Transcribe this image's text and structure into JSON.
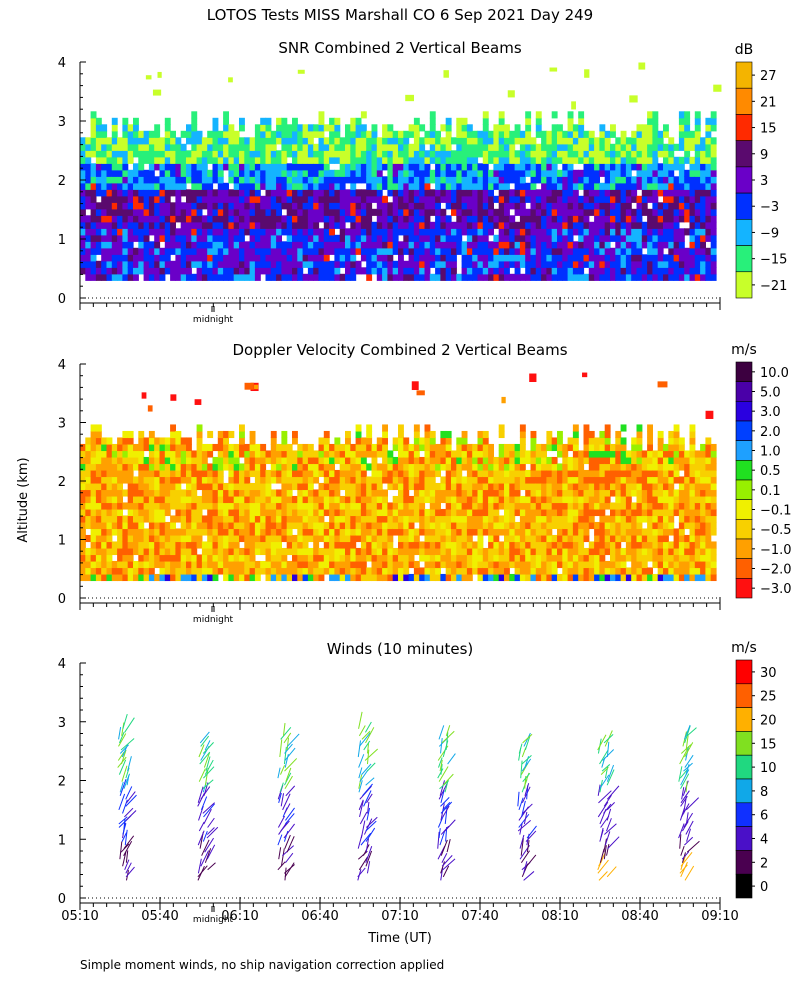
{
  "page": {
    "title": "LOTOS Tests MISS Marshall CO   6 Sep 2021 Day 249",
    "footer": "Simple moment winds, no ship navigation correction applied",
    "ylabel": "Altitude (km)",
    "xlabel": "Time (UT)",
    "midnight_label": "midnight"
  },
  "chart_data": [
    {
      "type": "heatmap",
      "title": "SNR Combined 2 Vertical Beams",
      "unit": "dB",
      "yticks": [
        "0",
        "1",
        "2",
        "3",
        "4"
      ],
      "ylim": [
        0,
        4
      ],
      "colorbar_labels": [
        "27",
        "21",
        "15",
        "9",
        "3",
        "−3",
        "−9",
        "−15",
        "−21"
      ],
      "colorbar_colors": [
        "#f4b400",
        "#ff8a00",
        "#ff2a00",
        "#5a0a6e",
        "#6a00c8",
        "#0030ff",
        "#14b4ff",
        "#28f07a",
        "#c8ff2a"
      ],
      "data_altitude_range_km": [
        0.3,
        3.0
      ]
    },
    {
      "type": "heatmap",
      "title": "Doppler Velocity Combined 2 Vertical Beams",
      "unit": "m/s",
      "yticks": [
        "0",
        "1",
        "2",
        "3",
        "4"
      ],
      "ylim": [
        0,
        4
      ],
      "colorbar_labels": [
        "10.0",
        "5.0",
        "3.0",
        "2.0",
        "1.0",
        "0.5",
        "0.1",
        "−0.1",
        "−0.5",
        "−1.0",
        "−2.0",
        "−3.0"
      ],
      "colorbar_colors": [
        "#3c0040",
        "#4a00a8",
        "#2a00e0",
        "#0040ff",
        "#1ea0ff",
        "#20e020",
        "#98f000",
        "#f0f000",
        "#f8d000",
        "#ffa000",
        "#ff6000",
        "#ff1010"
      ],
      "data_altitude_range_km": [
        0.3,
        2.8
      ]
    },
    {
      "type": "scatter",
      "title": "Winds (10 minutes)",
      "unit": "m/s",
      "yticks": [
        "0",
        "1",
        "2",
        "3",
        "4"
      ],
      "ylim": [
        0,
        4
      ],
      "xticks": [
        "05:10",
        "05:40",
        "06:10",
        "06:40",
        "07:10",
        "07:40",
        "08:10",
        "08:40",
        "09:10"
      ],
      "colorbar_labels": [
        "30",
        "25",
        "20",
        "15",
        "10",
        "8",
        "6",
        "4",
        "2",
        "0"
      ],
      "colorbar_colors": [
        "#ff0000",
        "#ff6000",
        "#ffb000",
        "#80e020",
        "#20d880",
        "#10a8e8",
        "#1030ff",
        "#4a10c8",
        "#4a0050",
        "#000000"
      ],
      "profile_times": [
        "05:26",
        "05:56",
        "06:26",
        "06:56",
        "07:26",
        "07:56",
        "08:26",
        "08:56"
      ],
      "profile_tops_km": [
        2.9,
        2.7,
        2.8,
        2.9,
        2.8,
        2.7,
        2.7,
        2.8
      ]
    }
  ]
}
